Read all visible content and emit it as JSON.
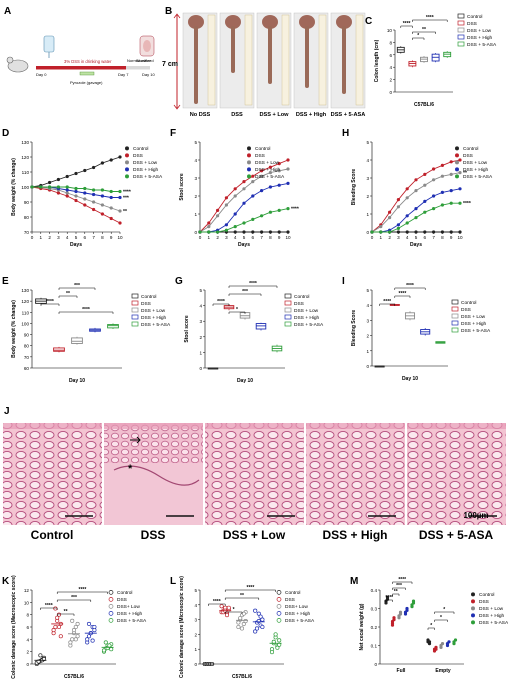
{
  "panels": {
    "A": {
      "letter": "A",
      "labels": [
        "3% DSS in drinking water",
        "Normal water",
        "Day 0",
        "Day 7",
        "Day 10",
        "Pyrozole (gavage)",
        "Sacrificed"
      ]
    },
    "B": {
      "letter": "B",
      "scale": "7 cm",
      "groups": [
        "No DSS",
        "DSS",
        "DSS + Low",
        "DSS + High",
        "DSS + 5-ASA"
      ]
    },
    "J": {
      "letter": "J",
      "groups": [
        "Control",
        "DSS",
        "DSS + Low",
        "DSS + High",
        "DSS + 5-ASA"
      ],
      "scalebar": "100µm"
    }
  },
  "colors": {
    "control": "#222222",
    "dss": "#c0202a",
    "low": "#8a8a8a",
    "high": "#1f2fb3",
    "asa": "#2e9e3a"
  },
  "legend5": [
    "Control",
    "DSS",
    "DSS + Low",
    "DSS + High",
    "DSS + 5-ASA"
  ],
  "chart_data": [
    {
      "id": "C",
      "letter": "C",
      "type": "box",
      "ylabel": "Colon length (cm)",
      "xlabel": "C57BL/6",
      "ylim": [
        0,
        10
      ],
      "yticks": [
        0,
        2,
        4,
        6,
        8,
        10
      ],
      "series": [
        {
          "name": "Control",
          "q1": 6.4,
          "median": 6.8,
          "q3": 7.2,
          "min": 6.2,
          "max": 7.4
        },
        {
          "name": "DSS",
          "q1": 4.2,
          "median": 4.6,
          "q3": 4.9,
          "min": 4.0,
          "max": 5.1
        },
        {
          "name": "DSS + Low",
          "q1": 4.9,
          "median": 5.3,
          "q3": 5.6,
          "min": 4.7,
          "max": 5.8
        },
        {
          "name": "DSS + High",
          "q1": 5.0,
          "median": 5.6,
          "q3": 6.1,
          "min": 4.8,
          "max": 6.3
        },
        {
          "name": "DSS + 5-ASA",
          "q1": 5.7,
          "median": 6.1,
          "q3": 6.4,
          "min": 5.5,
          "max": 6.6
        }
      ],
      "annotations": [
        "****",
        "*",
        "**",
        "****"
      ]
    },
    {
      "id": "D",
      "letter": "D",
      "type": "line",
      "ylabel": "Body weight (% change)",
      "xlabel": "Days",
      "ylim": [
        70,
        130
      ],
      "yticks": [
        70,
        80,
        90,
        100,
        110,
        120,
        130
      ],
      "x": [
        0,
        1,
        2,
        3,
        4,
        5,
        6,
        7,
        8,
        9,
        10
      ],
      "series": [
        {
          "name": "Control",
          "values": [
            100,
            101,
            103,
            105,
            107,
            109,
            111,
            113,
            116,
            118,
            120
          ]
        },
        {
          "name": "DSS",
          "values": [
            100,
            99,
            98,
            96,
            94,
            91,
            88,
            85,
            82,
            79,
            76
          ]
        },
        {
          "name": "DSS + Low",
          "values": [
            100,
            100,
            99,
            98,
            96,
            94,
            92,
            90,
            88,
            86,
            84
          ]
        },
        {
          "name": "DSS + High",
          "values": [
            100,
            100,
            100,
            99,
            98,
            97,
            96,
            95,
            94,
            93,
            93
          ]
        },
        {
          "name": "DSS + 5-ASA",
          "values": [
            100,
            100,
            100,
            100,
            100,
            99,
            99,
            98,
            98,
            97,
            97
          ]
        }
      ],
      "annotations": [
        "****",
        "***",
        "**"
      ]
    },
    {
      "id": "E",
      "letter": "E",
      "type": "box",
      "ylabel": "Body weight (% change)",
      "xlabel": "Day 10",
      "ylim": [
        60,
        130
      ],
      "yticks": [
        60,
        70,
        80,
        90,
        100,
        110,
        120,
        130
      ],
      "series": [
        {
          "name": "Control",
          "q1": 118,
          "median": 120,
          "q3": 122,
          "min": 117,
          "max": 123
        },
        {
          "name": "DSS",
          "q1": 75,
          "median": 76,
          "q3": 78,
          "min": 74,
          "max": 79
        },
        {
          "name": "DSS + Low",
          "q1": 82,
          "median": 84,
          "q3": 87,
          "min": 81,
          "max": 88
        },
        {
          "name": "DSS + High",
          "q1": 93,
          "median": 94,
          "q3": 95,
          "min": 92,
          "max": 96
        },
        {
          "name": "DSS + 5-ASA",
          "q1": 96,
          "median": 98,
          "q3": 99,
          "min": 95,
          "max": 100
        }
      ],
      "annotations": [
        "****",
        "**",
        "***",
        "****"
      ]
    },
    {
      "id": "F",
      "letter": "F",
      "type": "line",
      "ylabel": "Stool score",
      "xlabel": "Days",
      "ylim": [
        0,
        5
      ],
      "yticks": [
        0,
        1,
        2,
        3,
        4,
        5
      ],
      "x": [
        0,
        1,
        2,
        3,
        4,
        5,
        6,
        7,
        8,
        9,
        10
      ],
      "series": [
        {
          "name": "Control",
          "values": [
            0,
            0,
            0,
            0,
            0,
            0,
            0,
            0,
            0,
            0,
            0
          ]
        },
        {
          "name": "DSS",
          "values": [
            0,
            0.5,
            1.2,
            1.9,
            2.4,
            2.8,
            3.1,
            3.4,
            3.6,
            3.8,
            4.0
          ]
        },
        {
          "name": "DSS + Low",
          "values": [
            0,
            0.3,
            0.9,
            1.5,
            2.0,
            2.4,
            2.8,
            3.1,
            3.3,
            3.4,
            3.5
          ]
        },
        {
          "name": "DSS + High",
          "values": [
            0,
            0,
            0.1,
            0.4,
            1.0,
            1.6,
            2.0,
            2.3,
            2.5,
            2.6,
            2.7
          ]
        },
        {
          "name": "DSS + 5-ASA",
          "values": [
            0,
            0,
            0,
            0.1,
            0.3,
            0.5,
            0.7,
            0.9,
            1.1,
            1.2,
            1.3
          ]
        }
      ],
      "annotations": [
        "****"
      ]
    },
    {
      "id": "G",
      "letter": "G",
      "type": "box",
      "ylabel": "Stool score",
      "xlabel": "Day 10",
      "ylim": [
        0,
        5
      ],
      "yticks": [
        0,
        1,
        2,
        3,
        4,
        5
      ],
      "series": [
        {
          "name": "Control",
          "q1": 0,
          "median": 0,
          "q3": 0,
          "min": 0,
          "max": 0
        },
        {
          "name": "DSS",
          "q1": 3.8,
          "median": 3.9,
          "q3": 4.0,
          "min": 3.7,
          "max": 4.1
        },
        {
          "name": "DSS + Low",
          "q1": 3.2,
          "median": 3.35,
          "q3": 3.55,
          "min": 3.1,
          "max": 3.6
        },
        {
          "name": "DSS + High",
          "q1": 2.5,
          "median": 2.7,
          "q3": 2.85,
          "min": 2.4,
          "max": 2.9
        },
        {
          "name": "DSS + 5-ASA",
          "q1": 1.1,
          "median": 1.25,
          "q3": 1.4,
          "min": 1.0,
          "max": 1.5
        }
      ],
      "annotations": [
        "****",
        "*",
        "***",
        "****"
      ]
    },
    {
      "id": "H",
      "letter": "H",
      "type": "line",
      "ylabel": "Bleeding Score",
      "xlabel": "Days",
      "ylim": [
        0,
        5
      ],
      "yticks": [
        0,
        1,
        2,
        3,
        4,
        5
      ],
      "x": [
        0,
        1,
        2,
        3,
        4,
        5,
        6,
        7,
        8,
        9,
        10
      ],
      "series": [
        {
          "name": "Control",
          "values": [
            0,
            0,
            0,
            0,
            0,
            0,
            0,
            0,
            0,
            0,
            0
          ]
        },
        {
          "name": "DSS",
          "values": [
            0,
            0.4,
            1.1,
            1.8,
            2.4,
            2.9,
            3.2,
            3.5,
            3.7,
            3.9,
            4.0
          ]
        },
        {
          "name": "DSS + Low",
          "values": [
            0,
            0.3,
            0.8,
            1.4,
            1.9,
            2.3,
            2.6,
            2.9,
            3.1,
            3.2,
            3.3
          ]
        },
        {
          "name": "DSS + High",
          "values": [
            0,
            0,
            0.1,
            0.4,
            0.9,
            1.3,
            1.7,
            2.0,
            2.2,
            2.3,
            2.4
          ]
        },
        {
          "name": "DSS + 5-ASA",
          "values": [
            0,
            0,
            0,
            0.2,
            0.5,
            0.8,
            1.1,
            1.3,
            1.5,
            1.6,
            1.6
          ]
        }
      ],
      "annotations": [
        "**",
        "****"
      ]
    },
    {
      "id": "I",
      "letter": "I",
      "type": "box",
      "ylabel": "Bleeding Score",
      "xlabel": "Day 10",
      "ylim": [
        0,
        5
      ],
      "yticks": [
        0,
        1,
        2,
        3,
        4,
        5
      ],
      "series": [
        {
          "name": "Control",
          "q1": 0,
          "median": 0,
          "q3": 0,
          "min": 0,
          "max": 0
        },
        {
          "name": "DSS",
          "q1": 4.0,
          "median": 4.0,
          "q3": 4.05,
          "min": 3.95,
          "max": 4.1
        },
        {
          "name": "DSS + Low",
          "q1": 3.1,
          "median": 3.3,
          "q3": 3.5,
          "min": 3.0,
          "max": 3.6
        },
        {
          "name": "DSS + High",
          "q1": 2.1,
          "median": 2.25,
          "q3": 2.4,
          "min": 2.0,
          "max": 2.5
        },
        {
          "name": "DSS + 5-ASA",
          "q1": 1.5,
          "median": 1.55,
          "q3": 1.6,
          "min": 1.5,
          "max": 1.6
        }
      ],
      "annotations": [
        "****",
        "****",
        "****"
      ]
    },
    {
      "id": "K",
      "letter": "K",
      "type": "scatter",
      "ylabel": "Colonic damage score (Macroscopic score)",
      "xlabel": "C57BL/6",
      "ylim": [
        0,
        12
      ],
      "yticks": [
        0,
        2,
        4,
        6,
        8,
        10,
        12
      ],
      "legend": [
        "Control",
        "DSS",
        "DSS+ Low",
        "DSS + High",
        "DSS + 5-ASA"
      ],
      "series": [
        {
          "name": "Control",
          "values": [
            0,
            0.3,
            0.5,
            0.7,
            1.0,
            0.2,
            0.4,
            1.4,
            0.6,
            0.8
          ],
          "mean": 0.6
        },
        {
          "name": "DSS",
          "values": [
            5,
            6,
            7,
            8,
            6.5,
            5.5,
            9,
            7.5,
            6,
            4.5
          ],
          "mean": 6.5
        },
        {
          "name": "DSS+ Low",
          "values": [
            3,
            4,
            5,
            6,
            4.5,
            3.5,
            7,
            5.5,
            4,
            6.5
          ],
          "mean": 4.9
        },
        {
          "name": "DSS + High",
          "values": [
            3.5,
            4.5,
            5,
            6,
            5.5,
            4,
            6.5,
            5,
            3.8,
            6
          ],
          "mean": 5.0
        },
        {
          "name": "DSS + 5-ASA",
          "values": [
            2,
            2.5,
            3,
            2.8,
            3.2,
            2.2,
            3.5,
            2.6,
            3,
            2.4
          ],
          "mean": 2.7
        }
      ],
      "annotations": [
        "****",
        "**",
        "***",
        "****"
      ]
    },
    {
      "id": "L",
      "letter": "L",
      "type": "scatter",
      "ylabel": "Colonic damage score (Microscopic score)",
      "xlabel": "C57BL/6",
      "ylim": [
        0,
        5
      ],
      "yticks": [
        0,
        1,
        2,
        3,
        4,
        5
      ],
      "legend": [
        "Control",
        "DSS",
        "DSS+ Low",
        "DSS + High",
        "DSS + 5-ASA"
      ],
      "series": [
        {
          "name": "Control",
          "values": [
            0,
            0,
            0,
            0,
            0,
            0,
            0,
            0,
            0,
            0
          ],
          "mean": 0
        },
        {
          "name": "DSS",
          "values": [
            3.5,
            3.6,
            3.8,
            3.4,
            3.7,
            3.9,
            3.5,
            3.6,
            3.3,
            3.8
          ],
          "mean": 3.6
        },
        {
          "name": "DSS+ Low",
          "values": [
            2.5,
            3.0,
            3.3,
            2.7,
            3.5,
            2.8,
            3.1,
            2.4,
            3.4,
            2.9
          ],
          "mean": 2.95
        },
        {
          "name": "DSS + High",
          "values": [
            2.2,
            2.8,
            3.4,
            2.6,
            3.0,
            3.6,
            2.4,
            2.9,
            3.2,
            2.5
          ],
          "mean": 2.85
        },
        {
          "name": "DSS + 5-ASA",
          "values": [
            1.0,
            1.4,
            1.8,
            1.2,
            1.6,
            0.8,
            1.5,
            2.0,
            1.1,
            1.3
          ],
          "mean": 1.4
        }
      ],
      "annotations": [
        "****",
        "*",
        "**",
        "****"
      ]
    },
    {
      "id": "M",
      "letter": "M",
      "type": "scatter",
      "ylabel": "Net cecal weight (g)",
      "xlabel": "",
      "ylim": [
        0.0,
        0.4
      ],
      "yticks": [
        0.0,
        0.1,
        0.2,
        0.3,
        0.4
      ],
      "categories": [
        "Full",
        "Empty"
      ],
      "series": [
        {
          "name": "Control",
          "full": [
            0.34,
            0.35,
            0.33,
            0.36
          ],
          "empty": [
            0.12,
            0.11,
            0.13,
            0.12
          ]
        },
        {
          "name": "DSS",
          "full": [
            0.22,
            0.24,
            0.21,
            0.25,
            0.23
          ],
          "empty": [
            0.08,
            0.09,
            0.07,
            0.08
          ]
        },
        {
          "name": "DSS + Low",
          "full": [
            0.25,
            0.27,
            0.26,
            0.28
          ],
          "empty": [
            0.1,
            0.11,
            0.09
          ]
        },
        {
          "name": "DSS + High",
          "full": [
            0.27,
            0.29,
            0.28,
            0.3
          ],
          "empty": [
            0.11,
            0.12,
            0.1
          ]
        },
        {
          "name": "DSS + 5-ASA",
          "full": [
            0.31,
            0.33,
            0.32,
            0.34
          ],
          "empty": [
            0.12,
            0.13,
            0.11
          ]
        }
      ],
      "annotations": [
        "****",
        "**",
        "***",
        "****",
        "*",
        "*",
        "*"
      ]
    }
  ]
}
